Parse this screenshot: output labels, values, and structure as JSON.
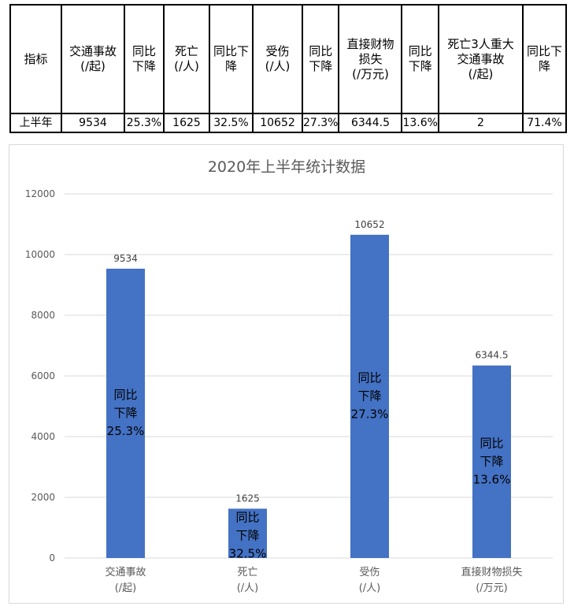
{
  "table": {
    "headers": [
      "指标",
      "交通事故\n(/起)",
      "同比\n下降",
      "死亡\n(/人)",
      "同比下\n降",
      "受伤\n(/人)",
      "同比\n下降",
      "直接财物\n损失\n(/万元)",
      "同比\n下降",
      "死亡3人重大\n交通事故\n(/起)",
      "同比下\n降"
    ],
    "row": [
      "上半年",
      "9534",
      "25.3%",
      "1625",
      "32.5%",
      "10652",
      "27.3%",
      "6344.5",
      "13.6%",
      "2",
      "71.4%"
    ]
  },
  "chart_data": {
    "type": "bar",
    "title": "2020年上半年统计数据",
    "categories": [
      [
        "交通事故",
        "(/起)"
      ],
      [
        "死亡",
        "(/人)"
      ],
      [
        "受伤",
        "(/人)"
      ],
      [
        "直接财物损失",
        "(/万元)"
      ]
    ],
    "values": [
      9534,
      1625,
      10652,
      6344.5
    ],
    "value_labels": [
      "9534",
      "1625",
      "10652",
      "6344.5"
    ],
    "annotations": [
      [
        "同比",
        "下降",
        "25.3%"
      ],
      [
        "同比",
        "下降",
        "32.5%"
      ],
      [
        "同比",
        "下降",
        "27.3%"
      ],
      [
        "同比",
        "下降",
        "13.6%"
      ]
    ],
    "ylim": [
      0,
      12000
    ],
    "yticks": [
      0,
      2000,
      4000,
      6000,
      8000,
      10000,
      12000
    ],
    "grid": true,
    "bar_color": "#4472c4",
    "grid_color": "#d9d9d9"
  }
}
